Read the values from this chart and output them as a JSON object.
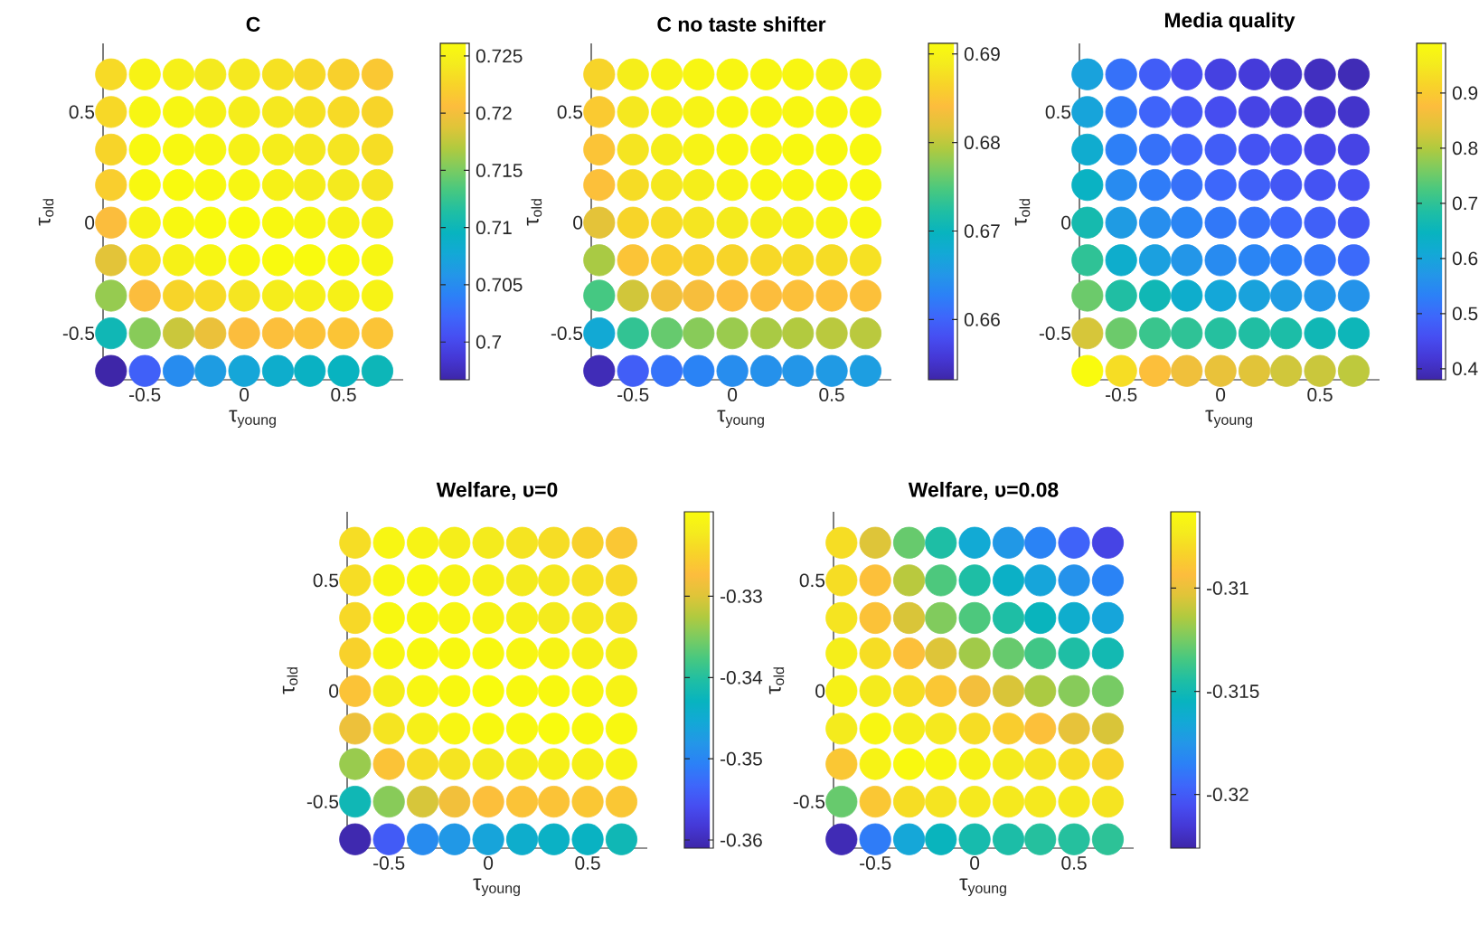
{
  "chart_data": [
    {
      "type": "scatter",
      "title": "C",
      "xlabel": "τ$_{young}$",
      "ylabel": "τ$_{old}$",
      "marker": "circle",
      "xlim": [
        -0.71,
        0.8
      ],
      "ylim": [
        -0.71,
        0.81
      ],
      "xticks": [
        -0.5,
        0,
        0.5
      ],
      "yticks": [
        -0.5,
        0,
        0.5
      ],
      "clim": [
        0.6967,
        0.7261
      ],
      "cticks": [
        0.7,
        0.705,
        0.71,
        0.715,
        0.72,
        0.725
      ],
      "x": [
        -0.67,
        -0.5,
        -0.33,
        -0.17,
        0,
        0.17,
        0.33,
        0.5,
        0.67,
        -0.67,
        -0.5,
        -0.33,
        -0.17,
        0,
        0.17,
        0.33,
        0.5,
        0.67,
        -0.67,
        -0.5,
        -0.33,
        -0.17,
        0,
        0.17,
        0.33,
        0.5,
        0.67,
        -0.67,
        -0.5,
        -0.33,
        -0.17,
        0,
        0.17,
        0.33,
        0.5,
        0.67,
        -0.67,
        -0.5,
        -0.33,
        -0.17,
        0,
        0.17,
        0.33,
        0.5,
        0.67,
        -0.67,
        -0.5,
        -0.33,
        -0.17,
        0,
        0.17,
        0.33,
        0.5,
        0.67,
        -0.67,
        -0.5,
        -0.33,
        -0.17,
        0,
        0.17,
        0.33,
        0.5,
        0.67,
        -0.67,
        -0.5,
        -0.33,
        -0.17,
        0,
        0.17,
        0.33,
        0.5,
        0.67,
        -0.67,
        -0.5,
        -0.33,
        -0.17,
        0,
        0.17,
        0.33,
        0.5,
        0.67
      ],
      "values": [
        0.67,
        0.67,
        0.67,
        0.67,
        0.67,
        0.67,
        0.67,
        0.67,
        0.67,
        0.5,
        0.5,
        0.5,
        0.5,
        0.5,
        0.5,
        0.5,
        0.5,
        0.5,
        0.33,
        0.33,
        0.33,
        0.33,
        0.33,
        0.33,
        0.33,
        0.33,
        0.33,
        0.17,
        0.17,
        0.17,
        0.17,
        0.17,
        0.17,
        0.17,
        0.17,
        0.17,
        0,
        0,
        0,
        0,
        0,
        0,
        0,
        0,
        0,
        -0.17,
        -0.17,
        -0.17,
        -0.17,
        -0.17,
        -0.17,
        -0.17,
        -0.17,
        -0.17,
        -0.33,
        -0.33,
        -0.33,
        -0.33,
        -0.33,
        -0.33,
        -0.33,
        -0.33,
        -0.33,
        -0.5,
        -0.5,
        -0.5,
        -0.5,
        -0.5,
        -0.5,
        -0.5,
        -0.5,
        -0.5,
        -0.67,
        -0.67,
        -0.67,
        -0.67,
        -0.67,
        -0.67,
        -0.67,
        -0.67,
        -0.67
      ],
      "cvalues": [
        0.723,
        0.7252,
        0.7248,
        0.7242,
        0.724,
        0.7235,
        0.7228,
        0.7222,
        0.7215,
        0.7228,
        0.7255,
        0.7255,
        0.725,
        0.7245,
        0.724,
        0.7235,
        0.723,
        0.7225,
        0.7225,
        0.7258,
        0.7258,
        0.7255,
        0.725,
        0.7245,
        0.724,
        0.7238,
        0.7232,
        0.722,
        0.7258,
        0.726,
        0.7258,
        0.7255,
        0.725,
        0.7245,
        0.7242,
        0.7238,
        0.7205,
        0.7252,
        0.7258,
        0.726,
        0.726,
        0.7258,
        0.7255,
        0.725,
        0.7248,
        0.719,
        0.7235,
        0.725,
        0.7255,
        0.7258,
        0.726,
        0.726,
        0.7258,
        0.7255,
        0.716,
        0.7205,
        0.7225,
        0.723,
        0.7238,
        0.7245,
        0.7248,
        0.725,
        0.7252,
        0.7102,
        0.7155,
        0.7179,
        0.7195,
        0.7205,
        0.7208,
        0.721,
        0.7212,
        0.7212,
        0.6967,
        0.7017,
        0.705,
        0.7065,
        0.7075,
        0.7085,
        0.7092,
        0.7095,
        0.71
      ]
    },
    {
      "type": "scatter",
      "title": "C no taste shifter",
      "xlabel": "τ$_{young}$",
      "ylabel": "τ$_{old}$",
      "marker": "circle",
      "xlim": [
        -0.71,
        0.8
      ],
      "ylim": [
        -0.71,
        0.81
      ],
      "xticks": [
        -0.5,
        0,
        0.5
      ],
      "yticks": [
        -0.5,
        0,
        0.5
      ],
      "clim": [
        0.6532,
        0.6912
      ],
      "cticks": [
        0.66,
        0.67,
        0.68,
        0.69
      ],
      "x": [
        -0.67,
        -0.5,
        -0.33,
        -0.17,
        0,
        0.17,
        0.33,
        0.5,
        0.67,
        -0.67,
        -0.5,
        -0.33,
        -0.17,
        0,
        0.17,
        0.33,
        0.5,
        0.67,
        -0.67,
        -0.5,
        -0.33,
        -0.17,
        0,
        0.17,
        0.33,
        0.5,
        0.67,
        -0.67,
        -0.5,
        -0.33,
        -0.17,
        0,
        0.17,
        0.33,
        0.5,
        0.67,
        -0.67,
        -0.5,
        -0.33,
        -0.17,
        0,
        0.17,
        0.33,
        0.5,
        0.67,
        -0.67,
        -0.5,
        -0.33,
        -0.17,
        0,
        0.17,
        0.33,
        0.5,
        0.67,
        -0.67,
        -0.5,
        -0.33,
        -0.17,
        0,
        0.17,
        0.33,
        0.5,
        0.67,
        -0.67,
        -0.5,
        -0.33,
        -0.17,
        0,
        0.17,
        0.33,
        0.5,
        0.67,
        -0.67,
        -0.5,
        -0.33,
        -0.17,
        0,
        0.17,
        0.33,
        0.5,
        0.67
      ],
      "values": [
        0.67,
        0.67,
        0.67,
        0.67,
        0.67,
        0.67,
        0.67,
        0.67,
        0.67,
        0.5,
        0.5,
        0.5,
        0.5,
        0.5,
        0.5,
        0.5,
        0.5,
        0.5,
        0.33,
        0.33,
        0.33,
        0.33,
        0.33,
        0.33,
        0.33,
        0.33,
        0.33,
        0.17,
        0.17,
        0.17,
        0.17,
        0.17,
        0.17,
        0.17,
        0.17,
        0.17,
        0,
        0,
        0,
        0,
        0,
        0,
        0,
        0,
        0,
        -0.17,
        -0.17,
        -0.17,
        -0.17,
        -0.17,
        -0.17,
        -0.17,
        -0.17,
        -0.17,
        -0.33,
        -0.33,
        -0.33,
        -0.33,
        -0.33,
        -0.33,
        -0.33,
        -0.33,
        -0.33,
        -0.5,
        -0.5,
        -0.5,
        -0.5,
        -0.5,
        -0.5,
        -0.5,
        -0.5,
        -0.5,
        -0.67,
        -0.67,
        -0.67,
        -0.67,
        -0.67,
        -0.67,
        -0.67,
        -0.67,
        -0.67
      ],
      "cvalues": [
        0.6866,
        0.6893,
        0.69,
        0.6905,
        0.6905,
        0.6905,
        0.6905,
        0.69,
        0.6897,
        0.6855,
        0.6885,
        0.6897,
        0.69,
        0.6905,
        0.6905,
        0.6905,
        0.6905,
        0.6905,
        0.6848,
        0.6882,
        0.6893,
        0.69,
        0.6905,
        0.6905,
        0.6908,
        0.6908,
        0.6908,
        0.6844,
        0.6874,
        0.6885,
        0.6893,
        0.69,
        0.6905,
        0.6905,
        0.6908,
        0.6908,
        0.6821,
        0.6866,
        0.6874,
        0.6882,
        0.6889,
        0.6893,
        0.6897,
        0.69,
        0.6905,
        0.679,
        0.6848,
        0.6859,
        0.6863,
        0.6866,
        0.687,
        0.6874,
        0.6874,
        0.6878,
        0.6745,
        0.681,
        0.6832,
        0.6836,
        0.684,
        0.684,
        0.6844,
        0.6844,
        0.6844,
        0.6676,
        0.6733,
        0.676,
        0.6775,
        0.6783,
        0.679,
        0.6794,
        0.6798,
        0.6798,
        0.654,
        0.6595,
        0.6615,
        0.663,
        0.664,
        0.6645,
        0.665,
        0.6655,
        0.666
      ]
    },
    {
      "type": "scatter",
      "title": "Media quality",
      "xlabel": "τ$_{young}$",
      "ylabel": "τ$_{old}$",
      "marker": "circle",
      "xlim": [
        -0.71,
        0.8
      ],
      "ylim": [
        -0.71,
        0.81
      ],
      "xticks": [
        -0.5,
        0,
        0.5
      ],
      "yticks": [
        -0.5,
        0,
        0.5
      ],
      "clim": [
        0.38,
        0.99
      ],
      "cticks": [
        0.4,
        0.5,
        0.6,
        0.7,
        0.8,
        0.9
      ],
      "x": [
        -0.67,
        -0.5,
        -0.33,
        -0.17,
        0,
        0.17,
        0.33,
        0.5,
        0.67,
        -0.67,
        -0.5,
        -0.33,
        -0.17,
        0,
        0.17,
        0.33,
        0.5,
        0.67,
        -0.67,
        -0.5,
        -0.33,
        -0.17,
        0,
        0.17,
        0.33,
        0.5,
        0.67,
        -0.67,
        -0.5,
        -0.33,
        -0.17,
        0,
        0.17,
        0.33,
        0.5,
        0.67,
        -0.67,
        -0.5,
        -0.33,
        -0.17,
        0,
        0.17,
        0.33,
        0.5,
        0.67,
        -0.67,
        -0.5,
        -0.33,
        -0.17,
        0,
        0.17,
        0.33,
        0.5,
        0.67,
        -0.67,
        -0.5,
        -0.33,
        -0.17,
        0,
        0.17,
        0.33,
        0.5,
        0.67,
        -0.67,
        -0.5,
        -0.33,
        -0.17,
        0,
        0.17,
        0.33,
        0.5,
        0.67,
        -0.67,
        -0.5,
        -0.33,
        -0.17,
        0,
        0.17,
        0.33,
        0.5,
        0.67
      ],
      "values": [
        0.67,
        0.67,
        0.67,
        0.67,
        0.67,
        0.67,
        0.67,
        0.67,
        0.67,
        0.5,
        0.5,
        0.5,
        0.5,
        0.5,
        0.5,
        0.5,
        0.5,
        0.5,
        0.33,
        0.33,
        0.33,
        0.33,
        0.33,
        0.33,
        0.33,
        0.33,
        0.33,
        0.17,
        0.17,
        0.17,
        0.17,
        0.17,
        0.17,
        0.17,
        0.17,
        0.17,
        0,
        0,
        0,
        0,
        0,
        0,
        0,
        0,
        0,
        -0.17,
        -0.17,
        -0.17,
        -0.17,
        -0.17,
        -0.17,
        -0.17,
        -0.17,
        -0.17,
        -0.33,
        -0.33,
        -0.33,
        -0.33,
        -0.33,
        -0.33,
        -0.33,
        -0.33,
        -0.33,
        -0.5,
        -0.5,
        -0.5,
        -0.5,
        -0.5,
        -0.5,
        -0.5,
        -0.5,
        -0.5,
        -0.67,
        -0.67,
        -0.67,
        -0.67,
        -0.67,
        -0.67,
        -0.67,
        -0.67,
        -0.67
      ],
      "cvalues": [
        0.595,
        0.51,
        0.48,
        0.455,
        0.435,
        0.425,
        0.41,
        0.4,
        0.392,
        0.6,
        0.52,
        0.49,
        0.47,
        0.455,
        0.44,
        0.43,
        0.415,
        0.41,
        0.62,
        0.53,
        0.51,
        0.49,
        0.48,
        0.465,
        0.46,
        0.445,
        0.44,
        0.64,
        0.55,
        0.525,
        0.51,
        0.495,
        0.485,
        0.47,
        0.465,
        0.46,
        0.67,
        0.58,
        0.555,
        0.54,
        0.52,
        0.51,
        0.495,
        0.485,
        0.47,
        0.7,
        0.625,
        0.59,
        0.57,
        0.55,
        0.54,
        0.53,
        0.515,
        0.5,
        0.75,
        0.685,
        0.66,
        0.625,
        0.605,
        0.595,
        0.58,
        0.57,
        0.565,
        0.83,
        0.75,
        0.71,
        0.7,
        0.69,
        0.685,
        0.68,
        0.66,
        0.655,
        0.99,
        0.93,
        0.88,
        0.86,
        0.85,
        0.84,
        0.825,
        0.82,
        0.81
      ]
    },
    {
      "type": "scatter",
      "title": "Welfare, υ=0",
      "xlabel": "τ$_{young}$",
      "ylabel": "τ$_{old}$",
      "marker": "circle",
      "xlim": [
        -0.71,
        0.8
      ],
      "ylim": [
        -0.71,
        0.81
      ],
      "xticks": [
        -0.5,
        0,
        0.5
      ],
      "yticks": [
        -0.5,
        0,
        0.5
      ],
      "clim": [
        -0.361,
        -0.3196
      ],
      "cticks": [
        -0.36,
        -0.35,
        -0.34,
        -0.33
      ],
      "x": [
        -0.67,
        -0.5,
        -0.33,
        -0.17,
        0,
        0.17,
        0.33,
        0.5,
        0.67,
        -0.67,
        -0.5,
        -0.33,
        -0.17,
        0,
        0.17,
        0.33,
        0.5,
        0.67,
        -0.67,
        -0.5,
        -0.33,
        -0.17,
        0,
        0.17,
        0.33,
        0.5,
        0.67,
        -0.67,
        -0.5,
        -0.33,
        -0.17,
        0,
        0.17,
        0.33,
        0.5,
        0.67,
        -0.67,
        -0.5,
        -0.33,
        -0.17,
        0,
        0.17,
        0.33,
        0.5,
        0.67,
        -0.67,
        -0.5,
        -0.33,
        -0.17,
        0,
        0.17,
        0.33,
        0.5,
        0.67,
        -0.67,
        -0.5,
        -0.33,
        -0.17,
        0,
        0.17,
        0.33,
        0.5,
        0.67,
        -0.67,
        -0.5,
        -0.33,
        -0.17,
        0,
        0.17,
        0.33,
        0.5,
        0.67,
        -0.67,
        -0.5,
        -0.33,
        -0.17,
        0,
        0.17,
        0.33,
        0.5,
        0.67
      ],
      "values": [
        0.67,
        0.67,
        0.67,
        0.67,
        0.67,
        0.67,
        0.67,
        0.67,
        0.67,
        0.5,
        0.5,
        0.5,
        0.5,
        0.5,
        0.5,
        0.5,
        0.5,
        0.5,
        0.33,
        0.33,
        0.33,
        0.33,
        0.33,
        0.33,
        0.33,
        0.33,
        0.33,
        0.17,
        0.17,
        0.17,
        0.17,
        0.17,
        0.17,
        0.17,
        0.17,
        0.17,
        0,
        0,
        0,
        0,
        0,
        0,
        0,
        0,
        0,
        -0.17,
        -0.17,
        -0.17,
        -0.17,
        -0.17,
        -0.17,
        -0.17,
        -0.17,
        -0.17,
        -0.33,
        -0.33,
        -0.33,
        -0.33,
        -0.33,
        -0.33,
        -0.33,
        -0.33,
        -0.33,
        -0.5,
        -0.5,
        -0.5,
        -0.5,
        -0.5,
        -0.5,
        -0.5,
        -0.5,
        -0.5,
        -0.67,
        -0.67,
        -0.67,
        -0.67,
        -0.67,
        -0.67,
        -0.67,
        -0.67,
        -0.67
      ],
      "cvalues": [
        -0.3237,
        -0.3204,
        -0.3208,
        -0.3217,
        -0.3221,
        -0.3229,
        -0.3237,
        -0.325,
        -0.3262,
        -0.3237,
        -0.3204,
        -0.32,
        -0.3208,
        -0.3213,
        -0.3221,
        -0.3225,
        -0.3233,
        -0.3242,
        -0.3242,
        -0.32,
        -0.32,
        -0.3204,
        -0.3208,
        -0.3213,
        -0.3221,
        -0.3225,
        -0.3229,
        -0.325,
        -0.3204,
        -0.32,
        -0.32,
        -0.32,
        -0.3204,
        -0.3208,
        -0.3213,
        -0.3217,
        -0.3266,
        -0.3217,
        -0.3204,
        -0.32,
        -0.3196,
        -0.32,
        -0.32,
        -0.3204,
        -0.3208,
        -0.3287,
        -0.3229,
        -0.3213,
        -0.3204,
        -0.32,
        -0.32,
        -0.3196,
        -0.32,
        -0.32,
        -0.3337,
        -0.3266,
        -0.3237,
        -0.3229,
        -0.3221,
        -0.3217,
        -0.3213,
        -0.3213,
        -0.3208,
        -0.342,
        -0.3345,
        -0.3304,
        -0.3283,
        -0.3271,
        -0.3266,
        -0.3266,
        -0.3262,
        -0.3262,
        -0.3606,
        -0.3544,
        -0.3494,
        -0.3478,
        -0.3461,
        -0.3444,
        -0.3436,
        -0.3432,
        -0.342
      ]
    },
    {
      "type": "scatter",
      "title": "Welfare, υ=0.08",
      "xlabel": "τ$_{young}$",
      "ylabel": "τ$_{old}$",
      "marker": "circle",
      "xlim": [
        -0.71,
        0.8
      ],
      "ylim": [
        -0.71,
        0.81
      ],
      "xticks": [
        -0.5,
        0,
        0.5
      ],
      "yticks": [
        -0.5,
        0,
        0.5
      ],
      "clim": [
        -0.3226,
        -0.3063
      ],
      "cticks": [
        -0.32,
        -0.315,
        -0.31
      ],
      "x": [
        -0.67,
        -0.5,
        -0.33,
        -0.17,
        0,
        0.17,
        0.33,
        0.5,
        0.67,
        -0.67,
        -0.5,
        -0.33,
        -0.17,
        0,
        0.17,
        0.33,
        0.5,
        0.67,
        -0.67,
        -0.5,
        -0.33,
        -0.17,
        0,
        0.17,
        0.33,
        0.5,
        0.67,
        -0.67,
        -0.5,
        -0.33,
        -0.17,
        0,
        0.17,
        0.33,
        0.5,
        0.67,
        -0.67,
        -0.5,
        -0.33,
        -0.17,
        0,
        0.17,
        0.33,
        0.5,
        0.67,
        -0.67,
        -0.5,
        -0.33,
        -0.17,
        0,
        0.17,
        0.33,
        0.5,
        0.67,
        -0.67,
        -0.5,
        -0.33,
        -0.17,
        0,
        0.17,
        0.33,
        0.5,
        0.67,
        -0.67,
        -0.5,
        -0.33,
        -0.17,
        0,
        0.17,
        0.33,
        0.5,
        0.67,
        -0.67,
        -0.5,
        -0.33,
        -0.17,
        0,
        0.17,
        0.33,
        0.5,
        0.67
      ],
      "values": [
        0.67,
        0.67,
        0.67,
        0.67,
        0.67,
        0.67,
        0.67,
        0.67,
        0.67,
        0.5,
        0.5,
        0.5,
        0.5,
        0.5,
        0.5,
        0.5,
        0.5,
        0.5,
        0.33,
        0.33,
        0.33,
        0.33,
        0.33,
        0.33,
        0.33,
        0.33,
        0.33,
        0.17,
        0.17,
        0.17,
        0.17,
        0.17,
        0.17,
        0.17,
        0.17,
        0.17,
        0,
        0,
        0,
        0,
        0,
        0,
        0,
        0,
        0,
        -0.17,
        -0.17,
        -0.17,
        -0.17,
        -0.17,
        -0.17,
        -0.17,
        -0.17,
        -0.17,
        -0.33,
        -0.33,
        -0.33,
        -0.33,
        -0.33,
        -0.33,
        -0.33,
        -0.33,
        -0.33,
        -0.5,
        -0.5,
        -0.5,
        -0.5,
        -0.5,
        -0.5,
        -0.5,
        -0.5,
        -0.5,
        -0.67,
        -0.67,
        -0.67,
        -0.67,
        -0.67,
        -0.67,
        -0.67,
        -0.67,
        -0.67
      ],
      "cvalues": [
        -0.3079,
        -0.3104,
        -0.3128,
        -0.3145,
        -0.3164,
        -0.3174,
        -0.3184,
        -0.3197,
        -0.321,
        -0.3079,
        -0.3092,
        -0.3112,
        -0.3133,
        -0.3145,
        -0.3158,
        -0.3167,
        -0.3177,
        -0.3184,
        -0.3076,
        -0.3091,
        -0.3105,
        -0.3123,
        -0.3133,
        -0.3145,
        -0.3154,
        -0.3161,
        -0.3167,
        -0.3071,
        -0.3079,
        -0.3092,
        -0.3104,
        -0.3117,
        -0.3128,
        -0.3136,
        -0.3145,
        -0.315,
        -0.3069,
        -0.3073,
        -0.3079,
        -0.3089,
        -0.3097,
        -0.3105,
        -0.3115,
        -0.3122,
        -0.3125,
        -0.3073,
        -0.3066,
        -0.3071,
        -0.3074,
        -0.3079,
        -0.3086,
        -0.3092,
        -0.3101,
        -0.3105,
        -0.3089,
        -0.3068,
        -0.3064,
        -0.3066,
        -0.3069,
        -0.3073,
        -0.3076,
        -0.3079,
        -0.3083,
        -0.3128,
        -0.3089,
        -0.3079,
        -0.3076,
        -0.3074,
        -0.3074,
        -0.3074,
        -0.3074,
        -0.3076,
        -0.3223,
        -0.3187,
        -0.3166,
        -0.3154,
        -0.3148,
        -0.3146,
        -0.3143,
        -0.3143,
        -0.3141
      ]
    }
  ]
}
